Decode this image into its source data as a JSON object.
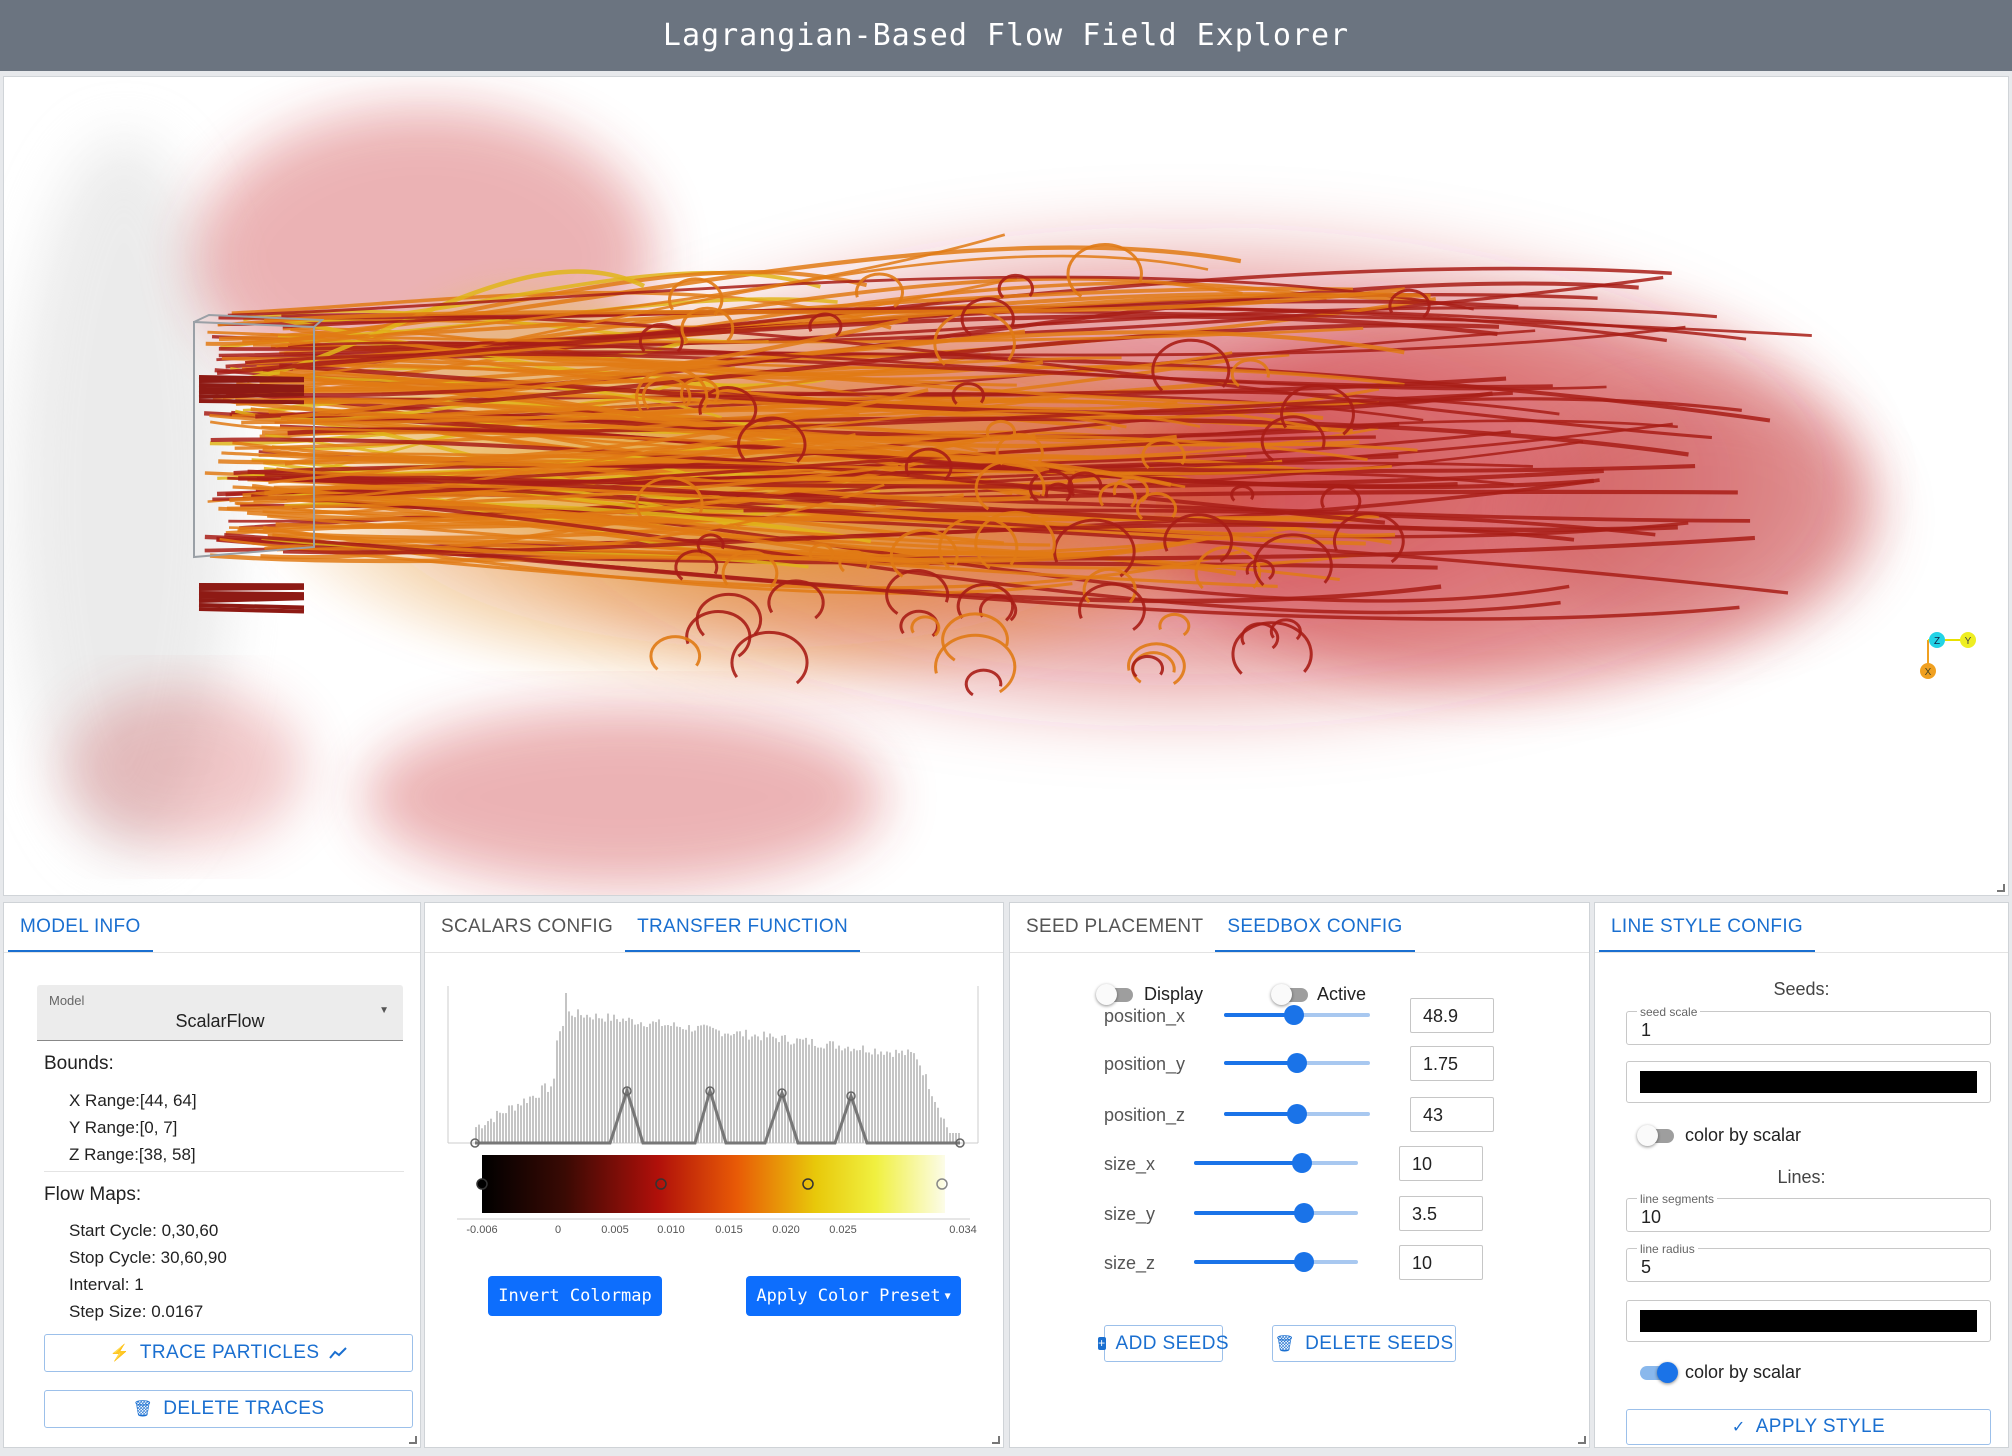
{
  "app": {
    "title": "Lagrangian-Based Flow Field Explorer"
  },
  "viewport": {
    "axes": {
      "x_label": "X",
      "y_label": "Y",
      "z_label": "Z"
    },
    "colors": {
      "lines_light": "#e0b51a",
      "lines_mid": "#e07a14",
      "lines_dark": "#a81d16",
      "smoke": "#c8262a"
    }
  },
  "model_info": {
    "tab": "MODEL INFO",
    "model_label": "Model",
    "model_value": "ScalarFlow",
    "bounds_title": "Bounds:",
    "x_range": "X Range:[44, 64]",
    "y_range": "Y Range:[0, 7]",
    "z_range": "Z Range:[38, 58]",
    "flow_maps_title": "Flow Maps:",
    "start_cycle": "Start Cycle: 0,30,60",
    "stop_cycle": "Stop Cycle: 30,60,90",
    "interval": "Interval: 1",
    "step_size": "Step Size: 0.0167",
    "trace_button": "TRACE PARTICLES",
    "delete_button": "DELETE TRACES"
  },
  "transfer": {
    "tabs": [
      "SCALARS CONFIG",
      "TRANSFER FUNCTION"
    ],
    "ticks": [
      "-0.006",
      "0",
      "0.005",
      "0.010",
      "0.015",
      "0.020",
      "0.025",
      "0.034"
    ],
    "invert_button": "Invert Colormap",
    "preset_button": "Apply Color Preset"
  },
  "seedbox": {
    "tabs": [
      "SEED PLACEMENT",
      "SEEDBOX CONFIG"
    ],
    "display_label": "Display",
    "active_label": "Active",
    "params": [
      {
        "name": "position_x",
        "value": "48.9",
        "fraction": 0.48
      },
      {
        "name": "position_y",
        "value": "1.75",
        "fraction": 0.5
      },
      {
        "name": "position_z",
        "value": "43",
        "fraction": 0.5
      },
      {
        "name": "size_x",
        "value": "10",
        "fraction": 0.66
      },
      {
        "name": "size_y",
        "value": "3.5",
        "fraction": 0.67
      },
      {
        "name": "size_z",
        "value": "10",
        "fraction": 0.67
      }
    ],
    "add_button": "ADD SEEDS",
    "delete_button": "DELETE SEEDS"
  },
  "line_style": {
    "tab": "LINE STYLE CONFIG",
    "seeds_title": "Seeds:",
    "seed_scale_label": "seed scale",
    "seed_scale_value": "1",
    "seed_color": "#000000",
    "seed_color_by_scalar": "color by scalar",
    "lines_title": "Lines:",
    "line_segments_label": "line segments",
    "line_segments_value": "10",
    "line_radius_label": "line radius",
    "line_radius_value": "5",
    "line_color": "#000000",
    "line_color_by_scalar": "color by scalar",
    "apply_button": "APPLY STYLE"
  }
}
